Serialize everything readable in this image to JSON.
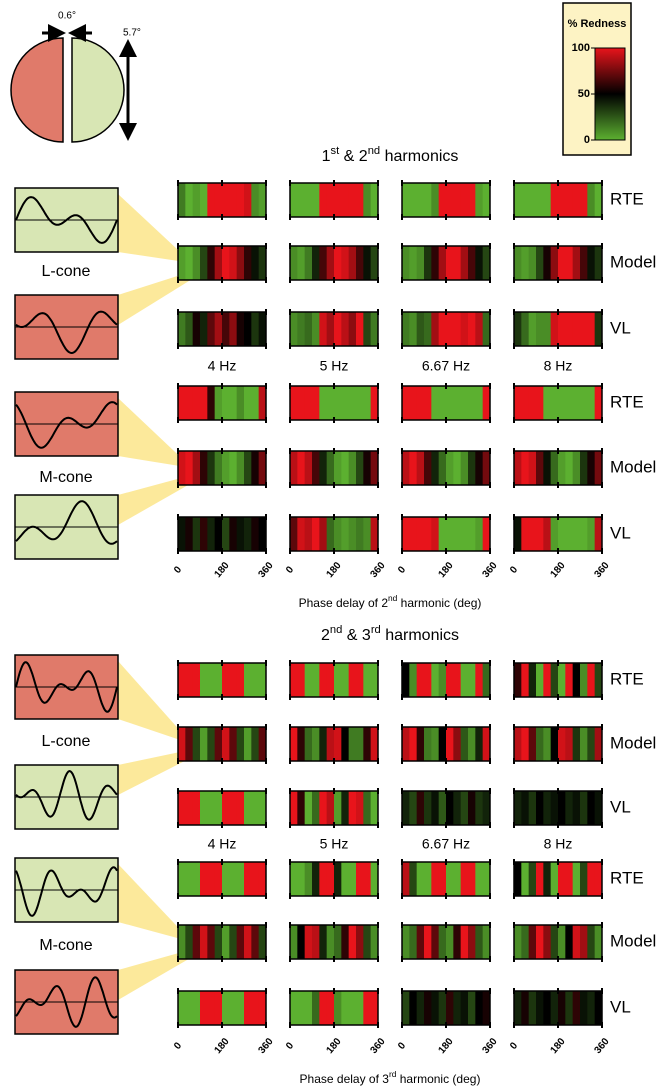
{
  "eye": {
    "separation": "0.6°",
    "height": "5.7°"
  },
  "legend": {
    "title": "% Redness",
    "ticks": [
      100,
      50,
      0
    ]
  },
  "sections": [
    {
      "title_parts": [
        "1",
        "st",
        " & 2",
        "nd",
        " harmonics"
      ],
      "frequencies": [
        "4 Hz",
        "5 Hz",
        "6.67 Hz",
        "8 Hz"
      ],
      "row_labels": [
        "RTE",
        "Model",
        "VL"
      ],
      "xticks": [
        0,
        180,
        360
      ],
      "xlabel_parts": [
        "Phase delay of 2",
        "nd",
        " harmonic (deg)"
      ],
      "groups": [
        {
          "label": "L-cone",
          "strips": [
            [
              [
                15,
                0,
                5,
                0,
                100,
                100,
                100,
                100,
                100,
                95,
                10,
                5
              ],
              [
                0,
                0,
                0,
                0,
                100,
                100,
                100,
                100,
                100,
                100,
                10,
                0
              ],
              [
                0,
                0,
                0,
                0,
                10,
                100,
                100,
                100,
                100,
                100,
                5,
                0
              ],
              [
                0,
                0,
                0,
                0,
                0,
                100,
                100,
                100,
                100,
                100,
                10,
                0
              ]
            ],
            [
              [
                5,
                0,
                10,
                30,
                60,
                85,
                100,
                95,
                80,
                60,
                45,
                35
              ],
              [
                10,
                5,
                15,
                40,
                65,
                85,
                100,
                95,
                85,
                65,
                45,
                30
              ],
              [
                10,
                5,
                10,
                35,
                60,
                85,
                100,
                100,
                85,
                65,
                45,
                30
              ],
              [
                10,
                5,
                10,
                30,
                55,
                80,
                100,
                100,
                85,
                65,
                45,
                35
              ]
            ],
            [
              [
                15,
                25,
                55,
                40,
                70,
                85,
                65,
                80,
                55,
                50,
                35,
                45
              ],
              [
                10,
                15,
                20,
                10,
                95,
                85,
                100,
                90,
                80,
                100,
                30,
                15
              ],
              [
                15,
                10,
                25,
                20,
                85,
                100,
                100,
                100,
                95,
                100,
                90,
                20
              ],
              [
                35,
                20,
                5,
                10,
                10,
                95,
                100,
                100,
                100,
                100,
                100,
                35
              ]
            ]
          ]
        },
        {
          "label": "M-cone",
          "strips": [
            [
              [
                100,
                100,
                100,
                100,
                60,
                5,
                0,
                0,
                10,
                0,
                0,
                90
              ],
              [
                100,
                100,
                100,
                100,
                0,
                0,
                0,
                0,
                0,
                0,
                0,
                100
              ],
              [
                100,
                100,
                100,
                100,
                0,
                0,
                0,
                0,
                0,
                0,
                0,
                100
              ],
              [
                100,
                100,
                100,
                100,
                0,
                0,
                0,
                0,
                0,
                0,
                0,
                100
              ]
            ],
            [
              [
                95,
                100,
                85,
                60,
                35,
                15,
                5,
                0,
                10,
                30,
                55,
                75
              ],
              [
                90,
                100,
                90,
                65,
                40,
                20,
                5,
                0,
                10,
                30,
                55,
                75
              ],
              [
                90,
                100,
                90,
                65,
                40,
                20,
                5,
                0,
                10,
                35,
                55,
                75
              ],
              [
                90,
                100,
                95,
                70,
                45,
                20,
                5,
                0,
                10,
                35,
                55,
                75
              ]
            ],
            [
              [
                45,
                55,
                35,
                60,
                40,
                50,
                30,
                55,
                45,
                40,
                55,
                50
              ],
              [
                70,
                95,
                90,
                100,
                85,
                20,
                10,
                5,
                10,
                15,
                10,
                90
              ],
              [
                100,
                100,
                100,
                100,
                95,
                0,
                0,
                0,
                0,
                0,
                5,
                100
              ],
              [
                45,
                100,
                100,
                100,
                90,
                5,
                0,
                0,
                0,
                0,
                5,
                90
              ]
            ]
          ]
        }
      ]
    },
    {
      "title_parts": [
        "2",
        "nd",
        " & 3",
        "rd",
        " harmonics"
      ],
      "frequencies": [
        "4 Hz",
        "5 Hz",
        "6.67 Hz",
        "8 Hz"
      ],
      "row_labels": [
        "RTE",
        "Model",
        "VL"
      ],
      "xticks": [
        0,
        180,
        360
      ],
      "xlabel_parts": [
        "Phase delay of 3",
        "rd",
        " harmonic (deg)"
      ],
      "groups": [
        {
          "label": "L-cone",
          "strips": [
            [
              [
                100,
                100,
                100,
                0,
                0,
                0,
                100,
                100,
                100,
                0,
                0,
                0
              ],
              [
                100,
                100,
                0,
                0,
                100,
                100,
                0,
                0,
                100,
                100,
                0,
                0
              ],
              [
                50,
                10,
                100,
                100,
                0,
                10,
                100,
                100,
                0,
                0,
                100,
                20
              ],
              [
                60,
                100,
                40,
                0,
                100,
                30,
                0,
                100,
                50,
                10,
                100,
                30
              ]
            ],
            [
              [
                95,
                70,
                30,
                5,
                30,
                70,
                95,
                70,
                30,
                5,
                30,
                70
              ],
              [
                100,
                60,
                20,
                10,
                40,
                90,
                95,
                50,
                15,
                15,
                60,
                95
              ],
              [
                90,
                100,
                60,
                15,
                10,
                50,
                100,
                80,
                25,
                10,
                40,
                95
              ],
              [
                90,
                100,
                70,
                20,
                10,
                50,
                95,
                90,
                35,
                10,
                30,
                85
              ]
            ],
            [
              [
                100,
                100,
                100,
                0,
                0,
                0,
                100,
                100,
                100,
                0,
                0,
                0
              ],
              [
                100,
                60,
                0,
                20,
                100,
                90,
                5,
                40,
                100,
                95,
                20,
                0
              ],
              [
                40,
                30,
                60,
                35,
                45,
                25,
                50,
                40,
                30,
                55,
                35,
                40
              ],
              [
                40,
                45,
                35,
                50,
                40,
                45,
                50,
                40,
                45,
                35,
                50,
                45
              ]
            ]
          ]
        },
        {
          "label": "M-cone",
          "strips": [
            [
              [
                0,
                0,
                0,
                100,
                100,
                100,
                0,
                0,
                0,
                100,
                100,
                100
              ],
              [
                0,
                0,
                10,
                40,
                100,
                100,
                40,
                0,
                0,
                100,
                100,
                0
              ],
              [
                90,
                30,
                0,
                0,
                100,
                100,
                0,
                0,
                100,
                100,
                0,
                0
              ],
              [
                50,
                0,
                30,
                100,
                40,
                0,
                100,
                100,
                0,
                30,
                100,
                100
              ]
            ],
            [
              [
                10,
                30,
                70,
                95,
                70,
                30,
                5,
                30,
                70,
                95,
                70,
                30
              ],
              [
                10,
                50,
                95,
                90,
                40,
                10,
                20,
                60,
                100,
                80,
                30,
                10
              ],
              [
                10,
                20,
                70,
                100,
                70,
                20,
                10,
                60,
                100,
                80,
                25,
                10
              ],
              [
                10,
                20,
                70,
                100,
                80,
                30,
                10,
                50,
                95,
                85,
                30,
                10
              ]
            ],
            [
              [
                0,
                0,
                0,
                100,
                100,
                100,
                0,
                0,
                0,
                100,
                100,
                100
              ],
              [
                0,
                0,
                0,
                20,
                100,
                100,
                10,
                0,
                0,
                0,
                100,
                100
              ],
              [
                30,
                50,
                40,
                55,
                45,
                35,
                60,
                40,
                45,
                30,
                50,
                55
              ],
              [
                40,
                55,
                35,
                45,
                50,
                40,
                55,
                35,
                60,
                45,
                40,
                50
              ]
            ]
          ]
        }
      ]
    }
  ]
}
